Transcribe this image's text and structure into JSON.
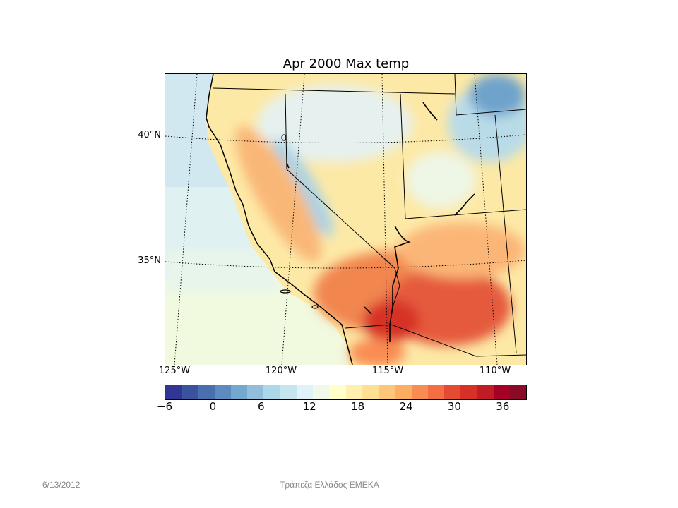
{
  "title": "Apr 2000 Max temp",
  "lat_labels": [
    "40°N",
    "35°N"
  ],
  "lon_labels": [
    "125°W",
    "120°W",
    "115°W",
    "110°W"
  ],
  "colorbar": {
    "ticks": [
      "−6",
      "0",
      "6",
      "12",
      "18",
      "24",
      "30",
      "36"
    ],
    "range": [
      -6,
      39
    ],
    "step": 2,
    "colors": [
      "#313695",
      "#3b529e",
      "#4a6fae",
      "#5d8bbf",
      "#74a9cf",
      "#91bfdb",
      "#abd9e9",
      "#c5e5ef",
      "#e0f3f8",
      "#f1f9ea",
      "#ffffcc",
      "#fff0b0",
      "#fee090",
      "#fdc67a",
      "#fdae61",
      "#f98c52",
      "#f46d43",
      "#e34c33",
      "#d73027",
      "#c11b26",
      "#a50026",
      "#8b0a26"
    ]
  },
  "footer": {
    "date": "6/13/2012",
    "center": "Τράπεζα Ελλάδος ΕΜΕΚΑ"
  }
}
